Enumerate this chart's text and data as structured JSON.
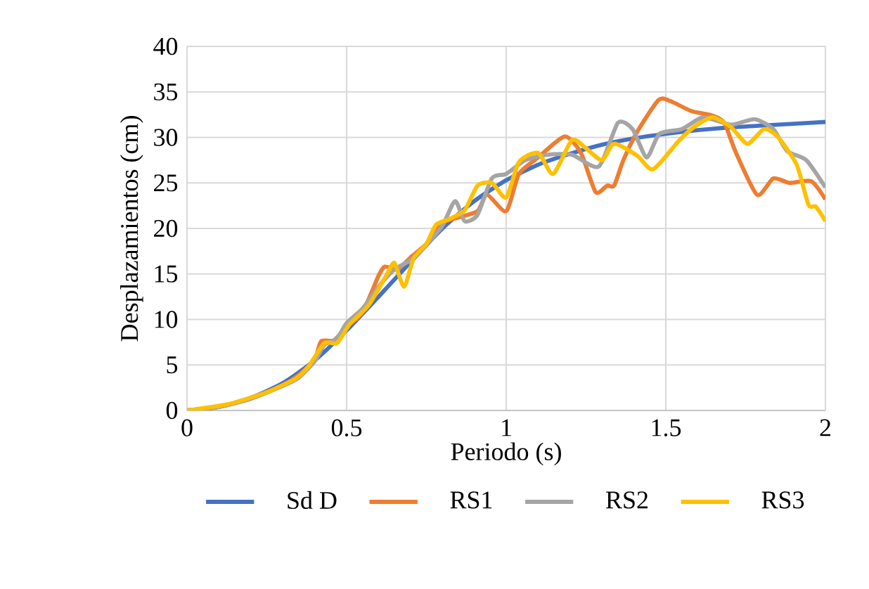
{
  "chart_data": {
    "type": "line",
    "xlabel": "Periodo (s)",
    "ylabel": "Desplazamientos (cm)",
    "xlim": [
      0,
      2
    ],
    "ylim": [
      0,
      40
    ],
    "xticks": [
      0,
      0.5,
      1,
      1.5,
      2
    ],
    "yticks": [
      0,
      5,
      10,
      15,
      20,
      25,
      30,
      35,
      40
    ],
    "grid": true,
    "legend": "bottom",
    "marker": "none",
    "line_style": "solid",
    "series": [
      {
        "name": "Sd D",
        "color": "#4472c4",
        "x": [
          0,
          0.1,
          0.2,
          0.3,
          0.4,
          0.5,
          0.6,
          0.7,
          0.8,
          0.9,
          1.0,
          1.1,
          1.2,
          1.3,
          1.4,
          1.5,
          1.6,
          1.7,
          1.8,
          1.9,
          2.0
        ],
        "values": [
          0,
          0.4,
          1.4,
          3,
          5.5,
          8.8,
          12.5,
          16.3,
          20,
          23,
          25.3,
          27,
          28.2,
          29.2,
          29.9,
          30.4,
          30.8,
          31.1,
          31.3,
          31.5,
          31.7
        ]
      },
      {
        "name": "RS1",
        "color": "#ed7d31",
        "x": [
          0,
          0.1,
          0.2,
          0.3,
          0.35,
          0.4,
          0.42,
          0.46,
          0.5,
          0.55,
          0.6,
          0.62,
          0.66,
          0.7,
          0.75,
          0.8,
          0.85,
          0.91,
          0.94,
          1.0,
          1.04,
          1.1,
          1.183,
          1.234,
          1.28,
          1.316,
          1.338,
          1.367,
          1.41,
          1.477,
          1.514,
          1.58,
          1.646,
          1.683,
          1.72,
          1.786,
          1.837,
          1.888,
          1.955,
          2.0
        ],
        "values": [
          0,
          0.4,
          1.3,
          2.8,
          3.9,
          5.6,
          7.6,
          7.7,
          9.2,
          10.8,
          14.8,
          15.8,
          15.5,
          16.8,
          18.3,
          20.6,
          21.2,
          21.9,
          23.7,
          21.9,
          26,
          27.8,
          30.1,
          28.3,
          24,
          24.7,
          24.7,
          27.5,
          30.6,
          34.1,
          34,
          32.9,
          32.4,
          31.6,
          28.3,
          23.7,
          25.5,
          25,
          25.2,
          23.2
        ]
      },
      {
        "name": "RS2",
        "color": "#a5a5a5",
        "x": [
          0,
          0.1,
          0.2,
          0.3,
          0.35,
          0.4,
          0.43,
          0.47,
          0.5,
          0.55,
          0.6,
          0.65,
          0.7,
          0.75,
          0.8,
          0.84,
          0.87,
          0.91,
          0.955,
          1.0,
          1.06,
          1.13,
          1.206,
          1.29,
          1.35,
          1.396,
          1.44,
          1.48,
          1.55,
          1.617,
          1.705,
          1.778,
          1.837,
          1.88,
          1.94,
          2.0
        ],
        "values": [
          0,
          0.4,
          1.3,
          2.7,
          3.6,
          5.4,
          7.2,
          7.9,
          9.6,
          11.2,
          13.6,
          15.5,
          16.5,
          18.2,
          20.3,
          23,
          20.8,
          21.5,
          25.5,
          26,
          27.5,
          28.1,
          28.1,
          26.8,
          31.6,
          30.9,
          27.8,
          30.4,
          30.9,
          32.2,
          31.4,
          32,
          30.9,
          28.5,
          27.5,
          24.5
        ]
      },
      {
        "name": "RS3",
        "color": "#ffc000",
        "x": [
          0,
          0.13,
          0.25,
          0.34,
          0.38,
          0.43,
          0.47,
          0.51,
          0.57,
          0.63,
          0.65,
          0.68,
          0.71,
          0.75,
          0.78,
          0.82,
          0.87,
          0.91,
          0.955,
          1.0,
          1.04,
          1.1,
          1.147,
          1.206,
          1.25,
          1.3,
          1.338,
          1.41,
          1.46,
          1.54,
          1.587,
          1.646,
          1.705,
          1.756,
          1.807,
          1.85,
          1.91,
          1.947,
          1.97,
          2.0
        ],
        "values": [
          0,
          0.7,
          2,
          3.5,
          4.8,
          7.4,
          7.4,
          9.5,
          11.6,
          15.2,
          16.2,
          13.6,
          16.7,
          18.3,
          20.4,
          21,
          22,
          24.7,
          25,
          23.4,
          27.3,
          28.3,
          26,
          29.7,
          28.8,
          27.5,
          29.3,
          28,
          26.5,
          29.6,
          31.1,
          32.2,
          31.1,
          29.3,
          30.9,
          30.1,
          27,
          22.6,
          22.4,
          20.8
        ]
      }
    ]
  }
}
